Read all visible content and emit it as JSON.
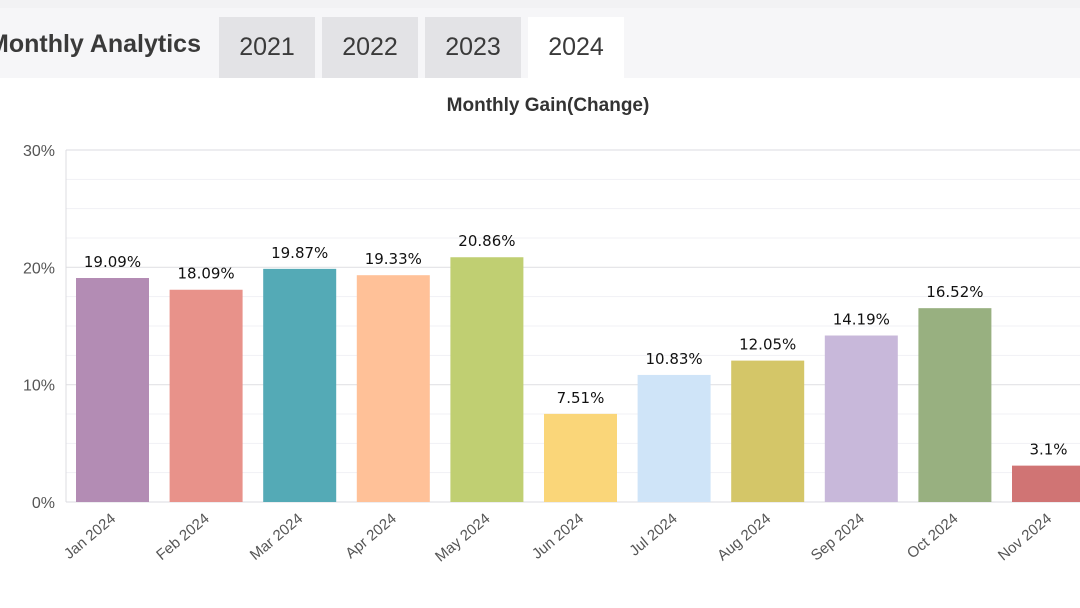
{
  "header": {
    "title": "Monthly Analytics",
    "tabs": [
      {
        "label": "2021",
        "active": false
      },
      {
        "label": "2022",
        "active": false
      },
      {
        "label": "2023",
        "active": false
      },
      {
        "label": "2024",
        "active": true
      }
    ]
  },
  "chart_data": {
    "type": "bar",
    "title": "Monthly Gain(Change)",
    "xlabel": "",
    "ylabel": "",
    "ylim": [
      0,
      30
    ],
    "yticks": [
      "0%",
      "10%",
      "20%",
      "30%"
    ],
    "grid": true,
    "categories": [
      "Jan 2024",
      "Feb 2024",
      "Mar 2024",
      "Apr 2024",
      "May 2024",
      "Jun 2024",
      "Jul 2024",
      "Aug 2024",
      "Sep 2024",
      "Oct 2024",
      "Nov 2024"
    ],
    "values": [
      19.09,
      18.09,
      19.87,
      19.33,
      20.86,
      7.51,
      10.83,
      12.05,
      14.19,
      16.52,
      3.1
    ],
    "value_labels": [
      "19.09%",
      "18.09%",
      "19.87%",
      "19.33%",
      "20.86%",
      "7.51%",
      "10.83%",
      "12.05%",
      "14.19%",
      "16.52%",
      "3.1%"
    ],
    "colors": [
      "#b38cb4",
      "#e8928a",
      "#54aab6",
      "#ffc198",
      "#c0cf72",
      "#fad679",
      "#cfe4f8",
      "#d4c668",
      "#c8b8da",
      "#98b080",
      "#d07474"
    ]
  }
}
